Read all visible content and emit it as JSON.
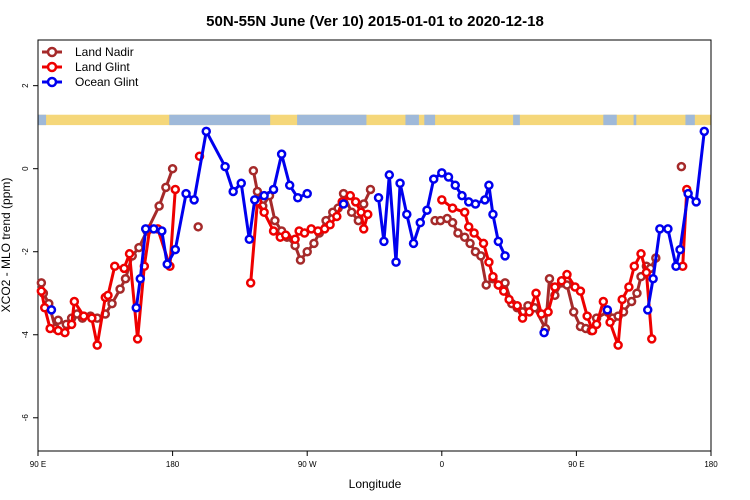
{
  "chart_data": {
    "type": "line",
    "title": "50N-55N June (Ver 10)   2015-01-01 to 2020-12-18",
    "xlabel": "Longitude",
    "ylabel": "XCO2 - MLO trend (ppm)",
    "xlim": [
      0,
      100
    ],
    "ylim": [
      -6.8,
      3.1
    ],
    "x_tick_positions": [
      0,
      20,
      40,
      60,
      80,
      100
    ],
    "x_tick_labels": [
      "90 E",
      "180",
      "90 W",
      "0",
      "90 E",
      "180"
    ],
    "y_ticks": [
      -6,
      -4,
      -2,
      0,
      2
    ],
    "y_tick_labels": [
      "-6",
      "-4",
      "-2",
      "0",
      "2"
    ],
    "legend_position": "top-left",
    "background_band": {
      "y_range": [
        1.05,
        1.3
      ],
      "land_color": "#f5d77a",
      "ocean_color": "#9fb9d9"
    },
    "series": [
      {
        "name": "Land Nadir",
        "color": "#a52a2a",
        "segments": [
          [
            [
              0.5,
              -2.75
            ],
            [
              0.8,
              -3.0
            ],
            [
              1.6,
              -3.25
            ],
            [
              2.6,
              -3.85
            ],
            [
              3.0,
              -3.65
            ],
            [
              4.2,
              -3.75
            ],
            [
              5.0,
              -3.6
            ],
            [
              5.8,
              -3.5
            ],
            [
              6.6,
              -3.6
            ],
            [
              7.8,
              -3.55
            ],
            [
              8.8,
              -3.6
            ],
            [
              10.0,
              -3.5
            ],
            [
              11.0,
              -3.25
            ],
            [
              12.2,
              -2.9
            ],
            [
              13.0,
              -2.65
            ],
            [
              14.0,
              -2.1
            ],
            [
              15.0,
              -1.9
            ],
            [
              16.2,
              -1.5
            ],
            [
              18.0,
              -0.9
            ],
            [
              19.0,
              -0.45
            ],
            [
              20.0,
              0.0
            ]
          ],
          [
            [
              23.8,
              -1.4
            ]
          ],
          [
            [
              32.0,
              -0.05
            ],
            [
              32.6,
              -0.55
            ],
            [
              33.4,
              -0.9
            ],
            [
              34.4,
              -0.65
            ],
            [
              35.2,
              -1.25
            ],
            [
              36.2,
              -1.5
            ],
            [
              37.0,
              -1.65
            ],
            [
              38.2,
              -1.85
            ],
            [
              39.0,
              -2.2
            ],
            [
              40.0,
              -2.0
            ],
            [
              41.0,
              -1.8
            ],
            [
              41.8,
              -1.55
            ],
            [
              42.8,
              -1.25
            ],
            [
              43.8,
              -1.05
            ],
            [
              44.6,
              -0.95
            ],
            [
              45.4,
              -0.6
            ],
            [
              46.6,
              -1.05
            ],
            [
              47.6,
              -1.25
            ],
            [
              48.4,
              -0.85
            ],
            [
              49.4,
              -0.5
            ]
          ],
          [
            [
              59.0,
              -1.25
            ],
            [
              59.8,
              -1.25
            ],
            [
              60.8,
              -1.2
            ],
            [
              61.6,
              -1.3
            ],
            [
              62.4,
              -1.55
            ],
            [
              63.4,
              -1.65
            ],
            [
              64.2,
              -1.8
            ],
            [
              65.0,
              -2.0
            ],
            [
              65.8,
              -2.1
            ],
            [
              66.6,
              -2.8
            ],
            [
              67.6,
              -2.65
            ],
            [
              68.4,
              -2.8
            ],
            [
              69.4,
              -2.75
            ],
            [
              70.4,
              -3.25
            ],
            [
              71.2,
              -3.35
            ],
            [
              72.0,
              -3.45
            ],
            [
              72.8,
              -3.3
            ],
            [
              73.8,
              -3.35
            ],
            [
              75.4,
              -3.85
            ],
            [
              76.0,
              -2.65
            ],
            [
              76.8,
              -3.05
            ],
            [
              77.8,
              -2.75
            ],
            [
              78.6,
              -2.8
            ],
            [
              79.6,
              -3.45
            ],
            [
              80.6,
              -3.8
            ],
            [
              81.4,
              -3.85
            ],
            [
              82.2,
              -3.9
            ],
            [
              83.0,
              -3.6
            ],
            [
              84.6,
              -3.45
            ],
            [
              85.4,
              -3.6
            ],
            [
              86.2,
              -3.55
            ],
            [
              87.0,
              -3.45
            ],
            [
              88.2,
              -3.2
            ],
            [
              89.0,
              -3.0
            ],
            [
              89.6,
              -2.6
            ],
            [
              90.4,
              -2.35
            ],
            [
              91.0,
              -2.4
            ],
            [
              91.8,
              -2.15
            ]
          ],
          [
            [
              95.6,
              0.05
            ]
          ]
        ]
      },
      {
        "name": "Land Glint",
        "color": "#ee0000",
        "segments": [
          [
            [
              0.5,
              -2.95
            ],
            [
              1.0,
              -3.35
            ],
            [
              1.8,
              -3.85
            ],
            [
              3.0,
              -3.9
            ],
            [
              4.0,
              -3.95
            ],
            [
              5.0,
              -3.75
            ],
            [
              5.4,
              -3.2
            ],
            [
              6.8,
              -3.55
            ],
            [
              8.0,
              -3.6
            ],
            [
              8.8,
              -4.25
            ],
            [
              10.0,
              -3.1
            ],
            [
              10.4,
              -3.05
            ],
            [
              11.4,
              -2.35
            ],
            [
              12.8,
              -2.4
            ],
            [
              13.6,
              -2.05
            ],
            [
              14.8,
              -4.1
            ],
            [
              15.8,
              -2.35
            ],
            [
              16.6,
              -1.45
            ],
            [
              17.8,
              -1.45
            ],
            [
              19.6,
              -2.35
            ],
            [
              20.4,
              -0.5
            ]
          ],
          [
            [
              24.0,
              0.3
            ]
          ],
          [
            [
              31.6,
              -2.75
            ],
            [
              32.6,
              -0.8
            ],
            [
              33.6,
              -1.05
            ],
            [
              35.0,
              -1.5
            ],
            [
              36.0,
              -1.65
            ],
            [
              36.8,
              -1.6
            ],
            [
              38.2,
              -1.7
            ],
            [
              38.8,
              -1.5
            ],
            [
              39.6,
              -1.55
            ],
            [
              40.6,
              -1.45
            ],
            [
              41.6,
              -1.5
            ],
            [
              42.6,
              -1.45
            ],
            [
              43.4,
              -1.35
            ],
            [
              44.4,
              -1.15
            ],
            [
              45.2,
              -0.8
            ],
            [
              46.4,
              -0.65
            ],
            [
              47.2,
              -0.8
            ],
            [
              48.0,
              -1.05
            ],
            [
              48.4,
              -1.45
            ],
            [
              49.0,
              -1.1
            ]
          ],
          [
            [
              60.0,
              -0.75
            ],
            [
              61.6,
              -0.95
            ],
            [
              63.4,
              -1.05
            ],
            [
              64.0,
              -1.4
            ],
            [
              64.8,
              -1.55
            ],
            [
              66.2,
              -1.8
            ],
            [
              67.0,
              -2.25
            ],
            [
              67.6,
              -2.6
            ],
            [
              68.4,
              -2.8
            ],
            [
              69.2,
              -2.95
            ],
            [
              70.0,
              -3.15
            ],
            [
              71.2,
              -3.3
            ],
            [
              72.0,
              -3.6
            ],
            [
              73.0,
              -3.45
            ],
            [
              74.0,
              -3.0
            ],
            [
              74.8,
              -3.5
            ],
            [
              75.8,
              -3.45
            ],
            [
              76.8,
              -2.85
            ],
            [
              77.8,
              -2.7
            ],
            [
              78.6,
              -2.55
            ],
            [
              79.8,
              -2.85
            ],
            [
              80.6,
              -2.95
            ],
            [
              81.6,
              -3.55
            ],
            [
              82.4,
              -3.9
            ],
            [
              83.0,
              -3.75
            ],
            [
              84.0,
              -3.2
            ],
            [
              85.0,
              -3.7
            ],
            [
              86.2,
              -4.25
            ],
            [
              86.8,
              -3.15
            ],
            [
              87.8,
              -2.85
            ],
            [
              88.6,
              -2.35
            ],
            [
              89.6,
              -2.05
            ],
            [
              90.4,
              -2.5
            ],
            [
              91.2,
              -4.1
            ]
          ],
          [
            [
              95.8,
              -2.35
            ],
            [
              96.4,
              -0.5
            ]
          ]
        ]
      },
      {
        "name": "Ocean Glint",
        "color": "#0000ee",
        "segments": [
          [
            [
              2.0,
              -3.4
            ]
          ],
          [
            [
              14.6,
              -3.35
            ],
            [
              15.2,
              -2.65
            ],
            [
              16.0,
              -1.45
            ],
            [
              17.2,
              -1.45
            ],
            [
              18.4,
              -1.5
            ],
            [
              19.2,
              -2.3
            ],
            [
              20.4,
              -1.95
            ],
            [
              22.0,
              -0.6
            ],
            [
              23.2,
              -0.75
            ],
            [
              25.0,
              0.9
            ],
            [
              27.8,
              0.05
            ],
            [
              29.0,
              -0.55
            ],
            [
              30.2,
              -0.35
            ],
            [
              31.4,
              -1.7
            ],
            [
              32.2,
              -0.75
            ],
            [
              33.6,
              -0.65
            ],
            [
              35.0,
              -0.5
            ],
            [
              36.2,
              0.35
            ],
            [
              37.4,
              -0.4
            ],
            [
              38.6,
              -0.7
            ],
            [
              40.0,
              -0.6
            ]
          ],
          [
            [
              45.4,
              -0.85
            ]
          ],
          [
            [
              50.6,
              -0.7
            ],
            [
              51.4,
              -1.75
            ],
            [
              52.2,
              -0.15
            ],
            [
              53.2,
              -2.25
            ],
            [
              53.8,
              -0.35
            ],
            [
              54.8,
              -1.1
            ],
            [
              55.8,
              -1.8
            ],
            [
              56.8,
              -1.3
            ],
            [
              57.8,
              -1.0
            ],
            [
              58.8,
              -0.25
            ],
            [
              60.0,
              -0.1
            ],
            [
              61.0,
              -0.2
            ],
            [
              62.0,
              -0.4
            ],
            [
              63.0,
              -0.65
            ],
            [
              64.0,
              -0.8
            ],
            [
              65.0,
              -0.85
            ],
            [
              66.4,
              -0.75
            ],
            [
              67.0,
              -0.4
            ],
            [
              67.6,
              -1.1
            ],
            [
              68.4,
              -1.75
            ],
            [
              69.4,
              -2.1
            ]
          ],
          [
            [
              75.2,
              -3.95
            ]
          ],
          [
            [
              84.6,
              -3.4
            ]
          ],
          [
            [
              90.6,
              -3.4
            ],
            [
              91.4,
              -2.65
            ],
            [
              92.4,
              -1.45
            ],
            [
              93.6,
              -1.45
            ],
            [
              94.8,
              -2.35
            ],
            [
              95.4,
              -1.95
            ],
            [
              96.6,
              -0.6
            ],
            [
              97.8,
              -0.8
            ],
            [
              99.0,
              0.9
            ]
          ]
        ]
      }
    ]
  }
}
